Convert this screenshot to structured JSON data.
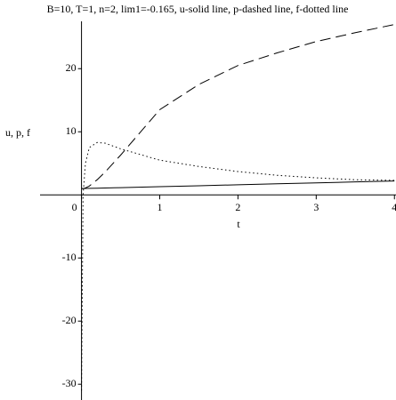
{
  "chart_data": {
    "type": "line",
    "title": "B=10, T=1, n=2, lim1=-0.165, u-solid line, p-dashed line, f-dotted line",
    "xlabel": "t",
    "ylabel": "u, p, f",
    "x": [
      0,
      0.02,
      0.05,
      0.1,
      0.2,
      0.3,
      0.5,
      1,
      1.5,
      2,
      2.5,
      3,
      3.5,
      4
    ],
    "series": [
      {
        "color": "#000000",
        "style": "solid",
        "values": [
          1,
          1.006,
          1.015,
          1.03,
          1.06,
          1.09,
          1.15,
          1.3,
          1.45,
          1.6,
          1.75,
          1.9,
          2.05,
          2.2
        ]
      },
      {
        "color": "#000000",
        "style": "dashed",
        "values": [
          1,
          1.0,
          1.1,
          1.4,
          2.4,
          3.6,
          6.3,
          13.5,
          17.5,
          20.5,
          22.5,
          24.3,
          25.7,
          27
        ]
      },
      {
        "color": "#000000",
        "style": "dotted",
        "values": [
          -31,
          0,
          5,
          7.5,
          8.3,
          8.2,
          7.3,
          5.5,
          4.5,
          3.7,
          3.1,
          2.7,
          2.4,
          2.3
        ]
      }
    ],
    "xlim": [
      -0.53,
      4.02
    ],
    "ylim": [
      -31.8,
      27.5
    ],
    "xticks": [
      0,
      1,
      2,
      3,
      4
    ],
    "yticks": [
      -30,
      -20,
      -10,
      10,
      20
    ]
  }
}
